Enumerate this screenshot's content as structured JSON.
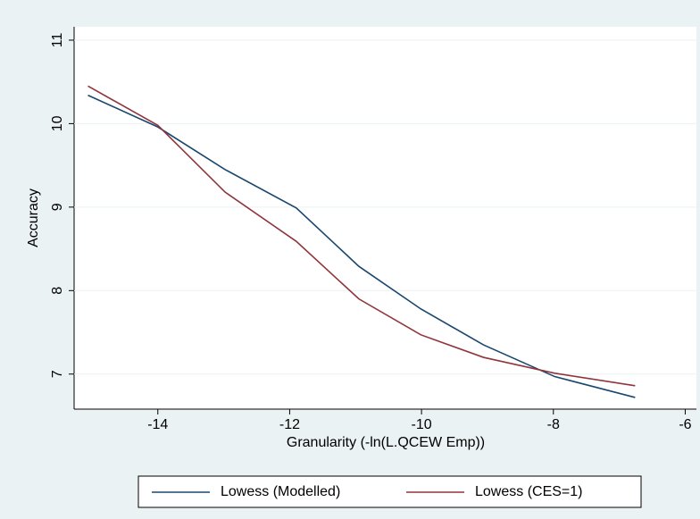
{
  "chart_data": {
    "type": "line",
    "x_label": "Granularity (-ln(L.QCEW Emp))",
    "y_label": "Accuracy",
    "x": [
      -15.06,
      -14,
      -12.98,
      -11.9,
      -10.95,
      -10.01,
      -9.06,
      -7.98,
      -6.76
    ],
    "series": [
      {
        "name": "Lowess (Modelled)",
        "color": "#1a476f",
        "values": [
          10.34,
          9.96,
          9.45,
          8.99,
          8.29,
          7.78,
          7.35,
          6.97,
          6.72
        ]
      },
      {
        "name": "Lowess (CES=1)",
        "color": "#90353b",
        "values": [
          10.45,
          9.98,
          9.18,
          8.59,
          7.9,
          7.47,
          7.2,
          7.01,
          6.86
        ]
      }
    ],
    "xlim": [
      -15.27,
      -5.83
    ],
    "xticks": [
      -14,
      -12,
      -10,
      -8,
      -6
    ],
    "ylim": [
      6.58,
      11.16
    ],
    "yticks": [
      7,
      8,
      9,
      10,
      11
    ],
    "grid": true
  }
}
